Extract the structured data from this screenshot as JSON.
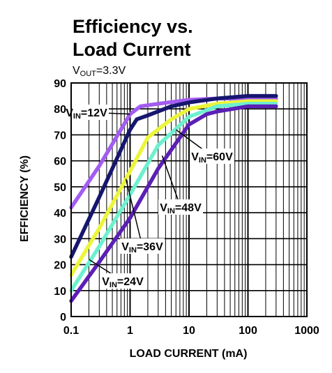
{
  "chart_data": {
    "type": "line",
    "title_line1": "Efficiency vs.",
    "title_line2": "Load Current",
    "subtitle": {
      "main": "V",
      "sub": "OUT",
      "rest": "=3.3V"
    },
    "xlabel": "LOAD CURRENT (mA)",
    "ylabel": "EFFICIENCY (%)",
    "x_scale": "log",
    "xlim": [
      0.1,
      1000
    ],
    "ylim": [
      0,
      90
    ],
    "x_ticks": [
      {
        "value": 0.1,
        "label": "0.1"
      },
      {
        "value": 1,
        "label": "1"
      },
      {
        "value": 10,
        "label": "10"
      },
      {
        "value": 100,
        "label": "100"
      },
      {
        "value": 1000,
        "label": "1000"
      }
    ],
    "y_ticks": [
      {
        "value": 0,
        "label": "0"
      },
      {
        "value": 10,
        "label": "10"
      },
      {
        "value": 20,
        "label": "20"
      },
      {
        "value": 30,
        "label": "30"
      },
      {
        "value": 40,
        "label": "40"
      },
      {
        "value": 50,
        "label": "50"
      },
      {
        "value": 60,
        "label": "60"
      },
      {
        "value": 70,
        "label": "70"
      },
      {
        "value": 80,
        "label": "80"
      },
      {
        "value": 90,
        "label": "90"
      }
    ],
    "grid": true,
    "series": [
      {
        "name": "VIN=12V",
        "label_main": "V",
        "label_sub": "IN",
        "label_rest": "=12V",
        "color": "#a35cf0",
        "points": [
          [
            0.1,
            42
          ],
          [
            0.3,
            58
          ],
          [
            1.0,
            78
          ],
          [
            1.5,
            81
          ],
          [
            3,
            82
          ],
          [
            10,
            83.5
          ],
          [
            30,
            84
          ],
          [
            100,
            84
          ],
          [
            300,
            84
          ]
        ]
      },
      {
        "name": "VIN=24V",
        "label_main": "V",
        "label_sub": "IN",
        "label_rest": "=24V",
        "color": "#16166e",
        "points": [
          [
            0.1,
            23
          ],
          [
            0.3,
            46
          ],
          [
            1.0,
            72
          ],
          [
            1.3,
            76
          ],
          [
            2,
            77.5
          ],
          [
            5,
            81
          ],
          [
            10,
            82.5
          ],
          [
            30,
            84
          ],
          [
            100,
            85
          ],
          [
            300,
            85
          ]
        ]
      },
      {
        "name": "VIN=36V",
        "label_main": "V",
        "label_sub": "IN",
        "label_rest": "=36V",
        "color": "#ecf53a",
        "points": [
          [
            0.1,
            16
          ],
          [
            0.3,
            34
          ],
          [
            1.0,
            56
          ],
          [
            2,
            69
          ],
          [
            5,
            76
          ],
          [
            10,
            80
          ],
          [
            30,
            82
          ],
          [
            100,
            83
          ],
          [
            300,
            83
          ]
        ]
      },
      {
        "name": "VIN=48V",
        "label_main": "V",
        "label_sub": "IN",
        "label_rest": "=48V",
        "color": "#6ef0cf",
        "points": [
          [
            0.1,
            10
          ],
          [
            0.3,
            27
          ],
          [
            1.0,
            47
          ],
          [
            3,
            66
          ],
          [
            10,
            77
          ],
          [
            30,
            81
          ],
          [
            100,
            82
          ],
          [
            300,
            82
          ]
        ]
      },
      {
        "name": "VIN=60V",
        "label_main": "V",
        "label_sub": "IN",
        "label_rest": "=60V",
        "color": "#5b1fb5",
        "points": [
          [
            0.1,
            6
          ],
          [
            0.3,
            21
          ],
          [
            1.0,
            38
          ],
          [
            3,
            57
          ],
          [
            10,
            74
          ],
          [
            20,
            78
          ],
          [
            30,
            79
          ],
          [
            100,
            81
          ],
          [
            300,
            81
          ]
        ]
      }
    ],
    "annotations": [
      {
        "series": "VIN=12V",
        "point": [
          1.0,
          78
        ]
      },
      {
        "series": "VIN=60V",
        "point": [
          6,
          72
        ]
      },
      {
        "series": "VIN=48V",
        "point": [
          3.5,
          62
        ]
      },
      {
        "series": "VIN=36V",
        "point": [
          0.85,
          53
        ]
      },
      {
        "series": "VIN=24V",
        "point": [
          0.2,
          22
        ]
      }
    ]
  }
}
